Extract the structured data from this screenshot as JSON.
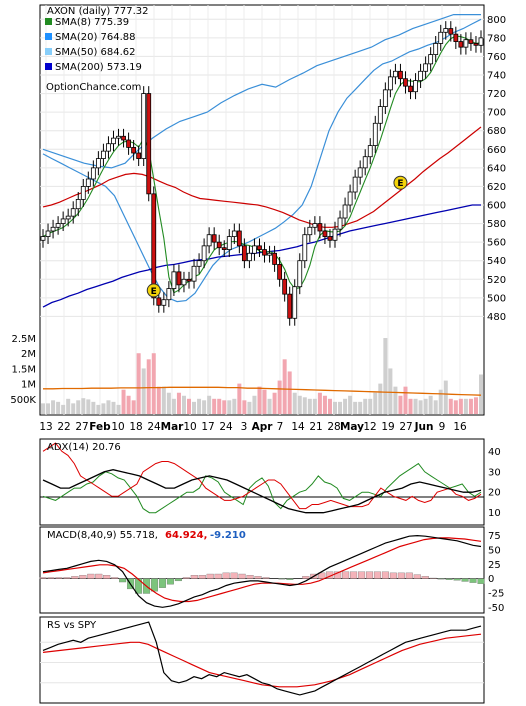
{
  "chart_data": {
    "type": "stock",
    "ticker_line": "AXON (daily) 777.32",
    "watermark": "OptionChance.com",
    "x_tick_labels": [
      "13",
      "22",
      "27",
      "Feb",
      "10",
      "18",
      "24",
      "Mar",
      "10",
      "17",
      "24",
      "3",
      "Apr",
      "7",
      "14",
      "21",
      "28",
      "May",
      "12",
      "19",
      "27",
      "Jun",
      "9",
      "16"
    ],
    "month_labels": [
      "Feb",
      "Mar",
      "Apr",
      "May",
      "Jun"
    ],
    "price_axis": {
      "min": 460,
      "max": 810,
      "ticks": [
        480,
        500,
        520,
        540,
        560,
        580,
        600,
        620,
        640,
        660,
        680,
        700,
        720,
        740,
        760,
        780,
        800
      ]
    },
    "legend": [
      {
        "label": "SMA(8) 775.39",
        "color": "#228b22"
      },
      {
        "label": "SMA(20) 764.88",
        "color": "#1e90ff"
      },
      {
        "label": "SMA(50) 684.62",
        "color": "#87cefa"
      },
      {
        "label": "SMA(200) 573.19",
        "color": "#0000cd"
      }
    ],
    "earnings_markers": [
      "E",
      "E"
    ],
    "closes": [
      566,
      572,
      576,
      580,
      585,
      588,
      596,
      606,
      620,
      628,
      640,
      650,
      658,
      666,
      672,
      674,
      670,
      662,
      656,
      650,
      720,
      612,
      500,
      492,
      498,
      510,
      528,
      514,
      520,
      518,
      534,
      540,
      556,
      568,
      560,
      554,
      552,
      566,
      572,
      556,
      540,
      548,
      556,
      552,
      546,
      548,
      536,
      520,
      504,
      478,
      512,
      540,
      568,
      576,
      580,
      572,
      566,
      562,
      574,
      586,
      600,
      614,
      630,
      640,
      652,
      664,
      688,
      706,
      724,
      738,
      744,
      736,
      728,
      722,
      734,
      744,
      752,
      762,
      774,
      786,
      790,
      784,
      776,
      770,
      778,
      774,
      772,
      780
    ],
    "sma200": [
      490,
      495,
      498,
      502,
      505,
      509,
      512,
      515,
      518,
      522,
      525,
      528,
      530,
      533,
      535,
      536,
      538,
      540,
      541,
      542,
      544,
      545,
      546,
      547,
      548,
      549,
      550,
      551,
      553,
      555,
      558,
      560,
      563,
      566,
      569,
      572,
      574,
      576,
      578,
      580,
      582,
      584,
      586,
      588,
      590,
      592,
      594,
      596,
      598,
      600,
      600
    ],
    "sma50": [
      598,
      600,
      603,
      607,
      611,
      614,
      618,
      622,
      627,
      630,
      633,
      634,
      633,
      630,
      626,
      622,
      619,
      614,
      610,
      607,
      606,
      605,
      604,
      603,
      602,
      601,
      600,
      598,
      595,
      592,
      588,
      584,
      581,
      578,
      576,
      576,
      577,
      580,
      583,
      588,
      593,
      600,
      607,
      614,
      621,
      628,
      636,
      643,
      650,
      656,
      663,
      670,
      677,
      684
    ],
    "bollinger_upper": [
      660,
      655,
      650,
      645,
      642,
      640,
      645,
      660,
      672,
      682,
      690,
      695,
      700,
      710,
      718,
      725,
      730,
      727,
      735,
      742,
      750,
      755,
      760,
      765,
      770,
      778,
      783,
      790,
      795,
      800,
      805,
      805,
      805
    ],
    "bollinger_lower": [
      655,
      650,
      645,
      640,
      635,
      630,
      625,
      620,
      610,
      590,
      570,
      550,
      530,
      512,
      500,
      496,
      497,
      505,
      520,
      535,
      545,
      552,
      556,
      560,
      565,
      570,
      575,
      582,
      590,
      600,
      620,
      650,
      680,
      700,
      715,
      725,
      735,
      745,
      752,
      755,
      760,
      765,
      768,
      772,
      775,
      780,
      786,
      790,
      795,
      800
    ],
    "volume_axis_labels": [
      "2.5M",
      "2M",
      "1.5M",
      "1M",
      "500K"
    ],
    "volume_axis_values": [
      2500000,
      2000000,
      1500000,
      1000000,
      500000
    ],
    "volume": [
      350000,
      350000,
      450000,
      400000,
      300000,
      500000,
      350000,
      450000,
      520000,
      480000,
      400000,
      300000,
      350000,
      450000,
      400000,
      300000,
      800000,
      600000,
      450000,
      2000000,
      1500000,
      1800000,
      2000000,
      900000,
      900000,
      700000,
      500000,
      700000,
      600000,
      500000,
      400000,
      500000,
      450000,
      600000,
      500000,
      500000,
      450000,
      450000,
      500000,
      1000000,
      450000,
      400000,
      600000,
      900000,
      800000,
      500000,
      700000,
      1100000,
      1800000,
      1400000,
      700000,
      600000,
      550000,
      500000,
      500000,
      700000,
      600000,
      500000,
      400000,
      400000,
      500000,
      600000,
      400000,
      400000,
      500000,
      500000,
      700000,
      1000000,
      2500000,
      1500000,
      900000,
      600000,
      900000,
      500000,
      500000,
      450000,
      500000,
      600000,
      450000,
      800000,
      1100000,
      500000,
      450000,
      500000,
      500000,
      500000,
      550000,
      1300000
    ],
    "volume_avg_line": [
      830000,
      830000,
      840000,
      840000,
      840000,
      850000,
      850000,
      850000,
      860000,
      860000,
      860000,
      870000,
      870000,
      880000,
      880000,
      880000,
      880000,
      880000,
      880000,
      870000,
      870000,
      850000,
      850000,
      840000,
      830000,
      820000,
      810000,
      800000,
      790000,
      780000,
      770000,
      760000,
      750000,
      740000,
      730000,
      720000,
      710000,
      700000,
      690000,
      680000,
      670000,
      660000,
      650000,
      640000,
      630000,
      620000
    ],
    "adx": {
      "label": "ADX(14) 20.76",
      "axis_ticks": [
        40,
        30,
        20,
        10
      ],
      "reference_line": 20,
      "adx_line": [
        26,
        24,
        22,
        22,
        24,
        26,
        28,
        30,
        31,
        30,
        29,
        28,
        26,
        24,
        22,
        22,
        24,
        26,
        27,
        28,
        27,
        26,
        24,
        22,
        20,
        18,
        16,
        14,
        12,
        11,
        10,
        10,
        10,
        11,
        12,
        13,
        14,
        16,
        18,
        20,
        21,
        22,
        24,
        25,
        24,
        23,
        22,
        21,
        20,
        20,
        21
      ],
      "plus_di": [
        18,
        17,
        16,
        18,
        20,
        22,
        22,
        24,
        25,
        28,
        30,
        29,
        27,
        26,
        22,
        18,
        12,
        10,
        10,
        12,
        14,
        16,
        18,
        20,
        20,
        22,
        28,
        27,
        25,
        20,
        18,
        16,
        14,
        22,
        25,
        27,
        23,
        15,
        12,
        16,
        18,
        20,
        21,
        24,
        28,
        25,
        24,
        22,
        17,
        16,
        18,
        20,
        20,
        19,
        18,
        22,
        25,
        28,
        30,
        32,
        34,
        30,
        28,
        26,
        24,
        22,
        23,
        24,
        20,
        18,
        20
      ],
      "minus_di": [
        40,
        42,
        44,
        40,
        38,
        34,
        28,
        26,
        24,
        22,
        20,
        18,
        18,
        20,
        22,
        24,
        30,
        32,
        34,
        35,
        35,
        34,
        32,
        30,
        28,
        26,
        22,
        20,
        18,
        16,
        16,
        17,
        18,
        20,
        22,
        24,
        26,
        26,
        24,
        20,
        16,
        12,
        12,
        14,
        14,
        15,
        16,
        15,
        14,
        13,
        13,
        13,
        14,
        18,
        22,
        20,
        18,
        17,
        16,
        18,
        16,
        15,
        16,
        20,
        21,
        22,
        19,
        18,
        16,
        17,
        19
      ]
    },
    "macd": {
      "label": "MACD(8,40,9) 55.718,",
      "signal_value": "64.924,",
      "hist_value": "-9.210",
      "axis_ticks": [
        75,
        50,
        25,
        0,
        -25,
        -50
      ],
      "macd_line": [
        12,
        14,
        16,
        18,
        22,
        26,
        30,
        32,
        30,
        24,
        12,
        -10,
        -30,
        -42,
        -48,
        -50,
        -48,
        -44,
        -38,
        -32,
        -28,
        -22,
        -18,
        -12,
        -8,
        -6,
        -4,
        -4,
        -6,
        -8,
        -10,
        -12,
        -10,
        -4,
        4,
        12,
        20,
        26,
        32,
        38,
        44,
        50,
        56,
        62,
        66,
        70,
        74,
        75,
        74,
        72,
        70,
        68,
        66,
        62,
        58,
        56
      ],
      "signal_line": [
        10,
        12,
        14,
        16,
        18,
        20,
        22,
        24,
        24,
        22,
        18,
        8,
        -4,
        -16,
        -26,
        -34,
        -38,
        -40,
        -40,
        -38,
        -34,
        -30,
        -26,
        -22,
        -18,
        -14,
        -10,
        -8,
        -8,
        -8,
        -9,
        -10,
        -10,
        -8,
        -4,
        2,
        8,
        14,
        20,
        26,
        32,
        38,
        44,
        50,
        56,
        60,
        64,
        68,
        70,
        71,
        71,
        70,
        69,
        67,
        65
      ],
      "histogram": [
        2,
        2,
        2,
        2,
        4,
        6,
        8,
        8,
        6,
        2,
        -6,
        -18,
        -26,
        -26,
        -22,
        -16,
        -10,
        -4,
        2,
        6,
        6,
        8,
        8,
        10,
        10,
        8,
        6,
        4,
        2,
        0,
        -1,
        -2,
        0,
        4,
        8,
        10,
        12,
        12,
        12,
        12,
        12,
        12,
        12,
        12,
        10,
        10,
        10,
        7,
        4,
        1,
        -1,
        -2,
        -3,
        -5,
        -7,
        -9
      ]
    },
    "rs": {
      "label": "RS vs SPY",
      "rs_line": [
        52,
        55,
        58,
        60,
        62,
        60,
        64,
        66,
        68,
        70,
        72,
        74,
        76,
        78,
        80,
        60,
        30,
        22,
        20,
        22,
        26,
        24,
        28,
        26,
        30,
        28,
        26,
        28,
        24,
        20,
        18,
        14,
        12,
        10,
        8,
        10,
        12,
        16,
        20,
        24,
        28,
        32,
        36,
        40,
        44,
        48,
        52,
        56,
        60,
        62,
        64,
        66,
        68,
        70,
        72,
        72,
        72,
        74,
        76
      ],
      "rs_avg": [
        50,
        51,
        52,
        53,
        54,
        55,
        56,
        57,
        58,
        59,
        60,
        60,
        58,
        54,
        50,
        46,
        42,
        38,
        34,
        30,
        28,
        26,
        24,
        22,
        20,
        18,
        17,
        16,
        16,
        16,
        17,
        18,
        20,
        22,
        25,
        28,
        32,
        36,
        40,
        44,
        48,
        52,
        55,
        58,
        60,
        62,
        64,
        65,
        66,
        67,
        68
      ]
    }
  }
}
